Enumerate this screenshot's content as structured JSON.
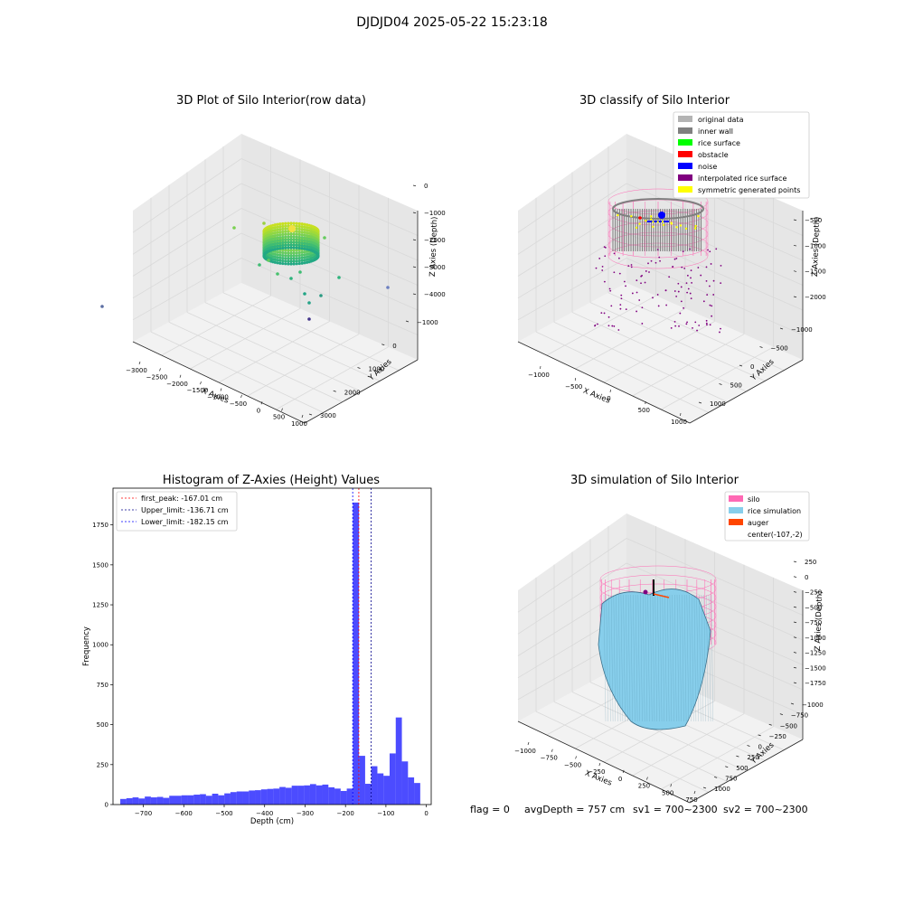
{
  "suptitle": "DJDJD04 2025-05-22 15:23:18",
  "panels": {
    "tl": {
      "title": "3D Plot of Silo Interior(row data)",
      "xlabel": "X Axies",
      "ylabel": "Y Axies",
      "zlabel": "Z Axies (Depth)",
      "xticks": [
        "−3000",
        "−2500",
        "−2000",
        "−1500",
        "−1000",
        "−500",
        "0",
        "500",
        "1000"
      ],
      "yticks": [
        "−1000",
        "0",
        "1000",
        "2000",
        "3000"
      ],
      "zticks": [
        "0",
        "−1000",
        "−2000",
        "−3000",
        "−4000"
      ]
    },
    "tr": {
      "title": "3D classify of Silo Interior",
      "xlabel": "X Axies",
      "ylabel": "Y Axies",
      "zlabel": "Z Axies (Depth)",
      "xticks": [
        "−1000",
        "−500",
        "0",
        "500",
        "1000"
      ],
      "yticks": [
        "−1000",
        "−500",
        "0",
        "500",
        "1000"
      ],
      "zticks": [
        "−500",
        "−1000",
        "−1500",
        "−2000"
      ],
      "legend": [
        {
          "label": "original data",
          "color": "#b4b4b4"
        },
        {
          "label": "inner wall",
          "color": "#808080"
        },
        {
          "label": "rice surface",
          "color": "#00ff00"
        },
        {
          "label": "obstacle",
          "color": "#ff0000"
        },
        {
          "label": "noise",
          "color": "#0000ff"
        },
        {
          "label": "interpolated rice surface",
          "color": "#800080"
        },
        {
          "label": "symmetric generated points",
          "color": "#ffff00"
        }
      ]
    },
    "br": {
      "title": "3D simulation of Silo Interior",
      "xlabel": "X Axies",
      "ylabel": "Y Axies",
      "zlabel": "Z Axies (Depth)",
      "xticks": [
        "−1000",
        "−750",
        "−500",
        "−250",
        "0",
        "250",
        "500",
        "750"
      ],
      "yticks": [
        "−1000",
        "−750",
        "−500",
        "−250",
        "0",
        "250",
        "500",
        "750",
        "1000"
      ],
      "zticks": [
        "250",
        "0",
        "−250",
        "−500",
        "−750",
        "−1000",
        "−1250",
        "−1500",
        "−1750"
      ],
      "legend": [
        {
          "label": "silo",
          "color": "#ff69b4"
        },
        {
          "label": "rice simulation",
          "color": "#87ceeb"
        },
        {
          "label": "auger",
          "color": "#ff4500"
        },
        {
          "label": "center(-107,-2)",
          "color": ""
        }
      ]
    }
  },
  "chart_data": {
    "type": "bar",
    "title": "Histogram of Z-Axies (Height) Values",
    "xlabel": "Depth (cm)",
    "ylabel": "Frequency",
    "xlim": [
      -775,
      12
    ],
    "ylim": [
      0,
      1980
    ],
    "xticks": [
      -700,
      -600,
      -500,
      -400,
      -300,
      -200,
      -100,
      0
    ],
    "xtick_labels": [
      "−700",
      "−600",
      "−500",
      "−400",
      "−300",
      "−200",
      "−100",
      "0"
    ],
    "yticks": [
      0,
      250,
      500,
      750,
      1000,
      1250,
      1500,
      1750
    ],
    "bin_start": -757,
    "bin_width": 15.14,
    "values": [
      35,
      40,
      45,
      38,
      50,
      45,
      48,
      42,
      55,
      55,
      58,
      58,
      62,
      65,
      55,
      68,
      58,
      70,
      78,
      82,
      82,
      88,
      90,
      95,
      98,
      100,
      110,
      105,
      118,
      118,
      120,
      128,
      120,
      125,
      108,
      100,
      85,
      100,
      1890,
      305,
      130,
      240,
      195,
      180,
      320,
      545,
      270,
      170,
      135
    ],
    "bar_color": "#0000ff",
    "bar_alpha": 0.7,
    "vlines": [
      {
        "label": "first_peak: -167.01 cm",
        "x": -167.01,
        "color": "#ff0000"
      },
      {
        "label": "Upper_limit: -136.71 cm",
        "x": -136.71,
        "color": "#00008b"
      },
      {
        "label": "Lower_limit: -182.15 cm",
        "x": -182.15,
        "color": "#0000ff"
      }
    ]
  },
  "footer": {
    "flag": "flag = 0",
    "avg": "avgDepth = 757 cm",
    "sv1": "sv1 = 700~2300",
    "sv2": "sv2 = 700~2300"
  }
}
